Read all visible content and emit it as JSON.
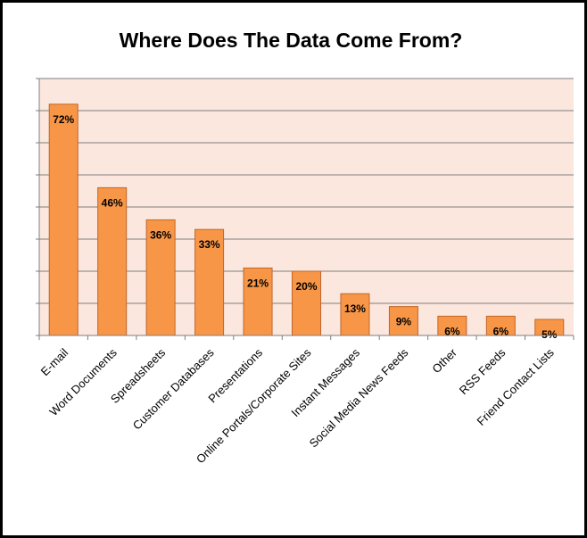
{
  "chart_data": {
    "type": "bar",
    "title": "Where Does The Data Come From?",
    "categories": [
      "E-mail",
      "Word Documents",
      "Spreadsheets",
      "Customer Databases",
      "Presentations",
      "Online Portals/Corporate Sites",
      "Instant Messages",
      "Social Media News Feeds",
      "Other",
      "RSS Feeds",
      "Friend Contact Lists"
    ],
    "values": [
      72,
      46,
      36,
      33,
      21,
      20,
      13,
      9,
      6,
      6,
      5
    ],
    "labels": [
      "72%",
      "46%",
      "36%",
      "33%",
      "21%",
      "20%",
      "13%",
      "9%",
      "6%",
      "6%",
      "5%"
    ],
    "ylim": [
      0,
      80
    ],
    "grid": true,
    "colors": {
      "bar": "#f79646",
      "bar_edge": "#c0652a",
      "plot_bg": "#fbe7de",
      "grid": "#7f7f7f"
    }
  }
}
